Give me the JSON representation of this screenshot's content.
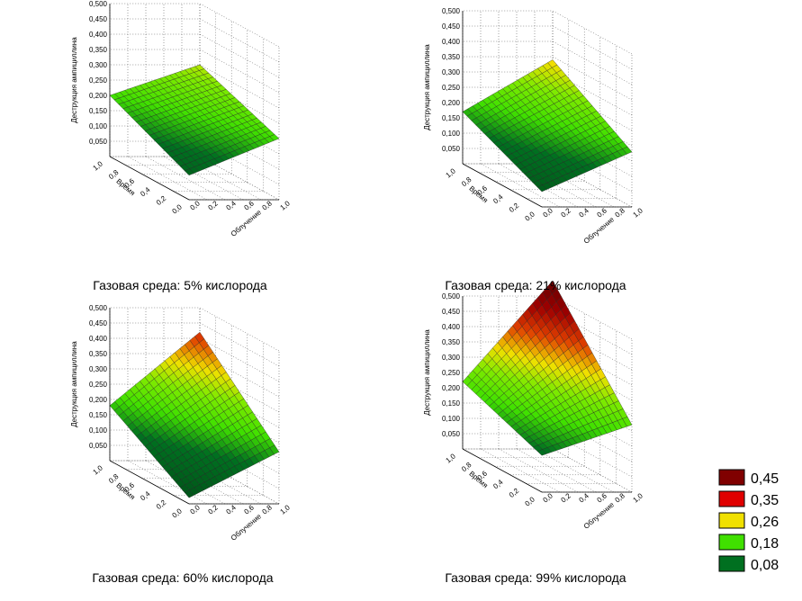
{
  "chart_data": [
    {
      "type": "surface3d",
      "caption": "Газовая среда: 5% кислорода",
      "zlabel": "Деструкция ампициллина",
      "xlabel": "Облучение",
      "ylabel": "Время",
      "zticks": [
        "0,500",
        "0,450",
        "0,400",
        "0,350",
        "0,300",
        "0,250",
        "0,200",
        "0,150",
        "0,100",
        "0,050"
      ],
      "xticks": [
        "0,0",
        "0,2",
        "0,4",
        "0,6",
        "0,8",
        "1,0"
      ],
      "yticks": [
        "0,0",
        "0,2",
        "0,4",
        "0,6",
        "0,8",
        "1,0"
      ],
      "zlim": [
        0.0,
        0.5
      ],
      "corners": {
        "x0y0": 0.08,
        "x1y0": 0.2,
        "x0y1": 0.2,
        "x1y1": 0.3
      }
    },
    {
      "type": "surface3d",
      "caption": "Газовая среда: 21% кислорода",
      "zlabel": "Деструкция ампициллина",
      "xlabel": "Облучение",
      "ylabel": "Время",
      "zticks": [
        "0,500",
        "0,450",
        "0,400",
        "0,350",
        "0,300",
        "0,250",
        "0,200",
        "0,150",
        "0,100",
        "0,050"
      ],
      "xticks": [
        "0,0",
        "0,2",
        "0,4",
        "0,6",
        "0,8",
        "1,0"
      ],
      "yticks": [
        "0,0",
        "0,2",
        "0,4",
        "0,6",
        "0,8",
        "1,0"
      ],
      "zlim": [
        0.0,
        0.5
      ],
      "corners": {
        "x0y0": 0.05,
        "x1y0": 0.18,
        "x0y1": 0.17,
        "x1y1": 0.34
      }
    },
    {
      "type": "surface3d",
      "caption": "Газовая среда: 60% кислорода",
      "zlabel": "Деструкция ампициллина",
      "xlabel": "Облучение",
      "ylabel": "Время",
      "zticks": [
        "0,500",
        "0,450",
        "0,400",
        "0,350",
        "0,300",
        "0,250",
        "0,200",
        "0,150",
        "0,100",
        "0,050"
      ],
      "xticks": [
        "0,0",
        "0,2",
        "0,4",
        "0,6",
        "0,8",
        "1,0"
      ],
      "yticks": [
        "0,0",
        "0,2",
        "0,4",
        "0,6",
        "0,8",
        "1,0"
      ],
      "zlim": [
        0.0,
        0.5
      ],
      "corners": {
        "x0y0": 0.02,
        "x1y0": 0.17,
        "x0y1": 0.18,
        "x1y1": 0.42
      }
    },
    {
      "type": "surface3d",
      "caption": "Газовая среда: 99% кислорода",
      "zlabel": "Деструкция ампициллина",
      "xlabel": "Облучение",
      "ylabel": "Время",
      "zticks": [
        "0,500",
        "0,450",
        "0,400",
        "0,350",
        "0,300",
        "0,250",
        "0,200",
        "0,150",
        "0,100",
        "0,050"
      ],
      "xticks": [
        "0,0",
        "0,2",
        "0,4",
        "0,6",
        "0,8",
        "1,0"
      ],
      "yticks": [
        "0,0",
        "0,2",
        "0,4",
        "0,6",
        "0,8",
        "1,0"
      ],
      "zlim": [
        0.0,
        0.5
      ],
      "corners": {
        "x0y0": 0.12,
        "x1y0": 0.22,
        "x0y1": 0.22,
        "x1y1": 0.55
      }
    }
  ],
  "legend": [
    {
      "label": "0,45",
      "color": "#800000"
    },
    {
      "label": "0,35",
      "color": "#e00000"
    },
    {
      "label": "0,26",
      "color": "#f0e000"
    },
    {
      "label": "0,18",
      "color": "#40e000"
    },
    {
      "label": "0,08",
      "color": "#007020"
    }
  ]
}
